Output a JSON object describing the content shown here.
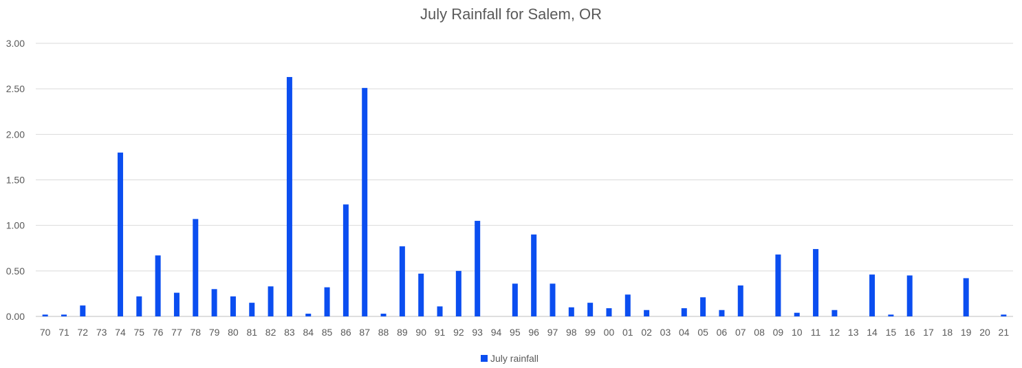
{
  "chart_data": {
    "type": "bar",
    "title": "July Rainfall for Salem, OR",
    "xlabel": "",
    "ylabel": "",
    "ylim": [
      0,
      3
    ],
    "y_ticks": [
      "0.00",
      "0.50",
      "1.00",
      "1.50",
      "2.00",
      "2.50",
      "3.00"
    ],
    "grid": true,
    "legend_position": "bottom",
    "categories": [
      "70",
      "71",
      "72",
      "73",
      "74",
      "75",
      "76",
      "77",
      "78",
      "79",
      "80",
      "81",
      "82",
      "83",
      "84",
      "85",
      "86",
      "87",
      "88",
      "89",
      "90",
      "91",
      "92",
      "93",
      "94",
      "95",
      "96",
      "97",
      "98",
      "99",
      "00",
      "01",
      "02",
      "03",
      "04",
      "05",
      "06",
      "07",
      "08",
      "09",
      "10",
      "11",
      "12",
      "13",
      "14",
      "15",
      "16",
      "17",
      "18",
      "19",
      "20",
      "21"
    ],
    "series": [
      {
        "name": "July rainfall",
        "color": "#0B4EF0",
        "values": [
          0.02,
          0.02,
          0.12,
          0.0,
          1.8,
          0.22,
          0.67,
          0.26,
          1.07,
          0.3,
          0.22,
          0.15,
          0.33,
          2.63,
          0.03,
          0.32,
          1.23,
          2.51,
          0.03,
          0.77,
          0.47,
          0.11,
          0.5,
          1.05,
          0.0,
          0.36,
          0.9,
          0.36,
          0.1,
          0.15,
          0.09,
          0.24,
          0.07,
          0.0,
          0.09,
          0.21,
          0.07,
          0.34,
          0.0,
          0.68,
          0.04,
          0.74,
          0.07,
          0.0,
          0.46,
          0.02,
          0.45,
          0.0,
          0.0,
          0.42,
          0.0,
          0.02
        ]
      }
    ]
  }
}
